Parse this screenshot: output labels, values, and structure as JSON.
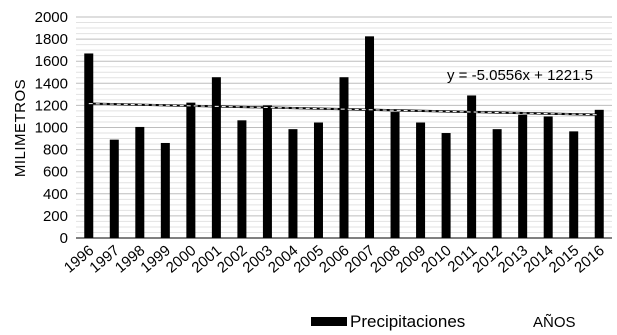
{
  "chart_data": {
    "type": "bar",
    "categories": [
      "1996",
      "1997",
      "1998",
      "1999",
      "2000",
      "2001",
      "2002",
      "2003",
      "2004",
      "2005",
      "2006",
      "2007",
      "2008",
      "2009",
      "2010",
      "2011",
      "2012",
      "2013",
      "2014",
      "2015",
      "2016"
    ],
    "series": [
      {
        "name": "Precipitaciones",
        "color": "#000000",
        "values": [
          1670,
          890,
          1005,
          860,
          1225,
          1455,
          1065,
          1200,
          985,
          1045,
          1455,
          1825,
          1140,
          1045,
          950,
          1290,
          985,
          1115,
          1100,
          965,
          1160
        ]
      }
    ],
    "trendline": {
      "equation": "y = -5.0556x + 1221.5",
      "slope": -5.0556,
      "intercept": 1221.5
    },
    "ylabel": "MILIMETROS",
    "xlabel": "AÑOS",
    "ylim": [
      0,
      2000
    ],
    "yticks": [
      0,
      200,
      400,
      600,
      800,
      1000,
      1200,
      1400,
      1600,
      1800,
      2000
    ],
    "grid": true,
    "legend_position": "bottom"
  }
}
